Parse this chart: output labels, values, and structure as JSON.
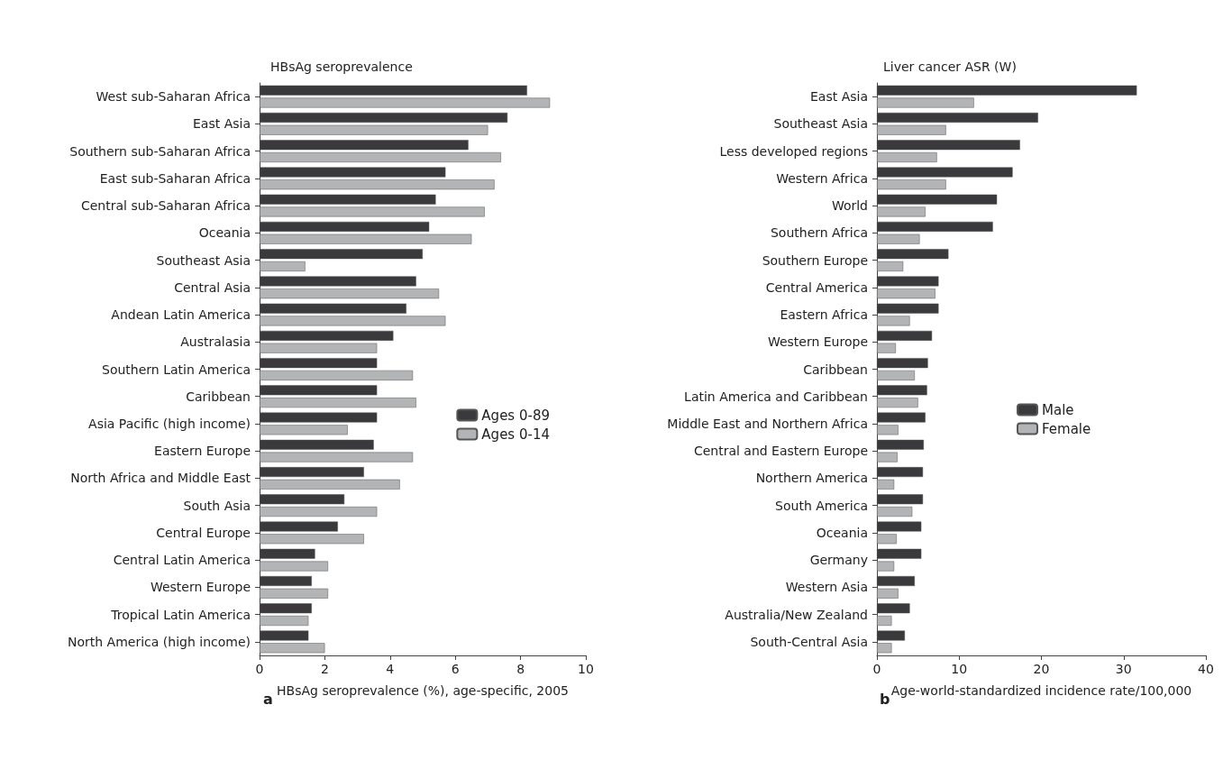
{
  "chart_data": [
    {
      "type": "bar",
      "orientation": "horizontal",
      "title": "HBsAg seroprevalence",
      "xlabel": "HBsAg seroprevalence (%), age-specific, 2005",
      "annotations": [
        "a"
      ],
      "categories": [
        "West sub-Saharan Africa",
        "East Asia",
        "Southern sub-Saharan Africa",
        "East sub-Saharan Africa",
        "Central sub-Saharan Africa",
        "Oceania",
        "Southeast Asia",
        "Central Asia",
        "Andean Latin America",
        "Australasia",
        "Southern Latin America",
        "Caribbean",
        "Asia Pacific (high income)",
        "Eastern Europe",
        "North Africa and Middle East",
        "South Asia",
        "Central Europe",
        "Central Latin America",
        "Western Europe",
        "Tropical Latin America",
        "North America (high income)"
      ],
      "series": [
        {
          "name": "Ages 0-89",
          "color": "#3a3a3c",
          "values": [
            8.2,
            7.6,
            6.4,
            5.7,
            5.4,
            5.2,
            5.0,
            4.8,
            4.5,
            4.1,
            3.6,
            3.6,
            3.6,
            3.5,
            3.2,
            2.6,
            2.4,
            1.7,
            1.6,
            1.6,
            1.5
          ]
        },
        {
          "name": "Ages 0-14",
          "color": "#b3b4b6",
          "values": [
            8.9,
            7.0,
            7.4,
            7.2,
            6.9,
            6.5,
            1.4,
            5.5,
            5.7,
            3.6,
            4.7,
            4.8,
            2.7,
            4.7,
            4.3,
            3.6,
            3.2,
            2.1,
            2.1,
            1.5,
            2.0
          ]
        }
      ],
      "xlim": [
        0,
        10
      ],
      "xticks": [
        0,
        2,
        4,
        6,
        8,
        10
      ],
      "grid": false,
      "legend": "right"
    },
    {
      "type": "bar",
      "orientation": "horizontal",
      "title": "Liver cancer ASR (W)",
      "xlabel": "Age-world-standardized incidence rate/100,000",
      "annotations": [
        "b"
      ],
      "categories": [
        "East Asia",
        "Southeast Asia",
        "Less developed regions",
        "Western Africa",
        "World",
        "Southern Africa",
        "Southern Europe",
        "Central America",
        "Eastern Africa",
        "Western Europe",
        "Caribbean",
        "Latin America and Caribbean",
        "Middle East and Northern Africa",
        "Central and Eastern Europe",
        "Northern America",
        "South America",
        "Oceania",
        "Germany",
        "Western Asia",
        "Australia/New Zealand",
        "South-Central Asia"
      ],
      "series": [
        {
          "name": "Male",
          "color": "#3a3a3c",
          "values": [
            31.6,
            19.6,
            17.4,
            16.5,
            14.6,
            14.1,
            8.7,
            7.5,
            7.5,
            6.7,
            6.2,
            6.1,
            5.9,
            5.7,
            5.6,
            5.6,
            5.4,
            5.4,
            4.6,
            4.0,
            3.4
          ]
        },
        {
          "name": "Female",
          "color": "#b3b4b6",
          "values": [
            11.8,
            8.4,
            7.3,
            8.4,
            5.9,
            5.2,
            3.2,
            7.1,
            4.0,
            2.3,
            4.6,
            5.0,
            2.6,
            2.5,
            2.1,
            4.3,
            2.4,
            2.1,
            2.6,
            1.8,
            1.8
          ]
        }
      ],
      "xlim": [
        0,
        40
      ],
      "xticks": [
        0,
        10,
        20,
        30,
        40
      ],
      "grid": false,
      "legend": "center"
    }
  ]
}
